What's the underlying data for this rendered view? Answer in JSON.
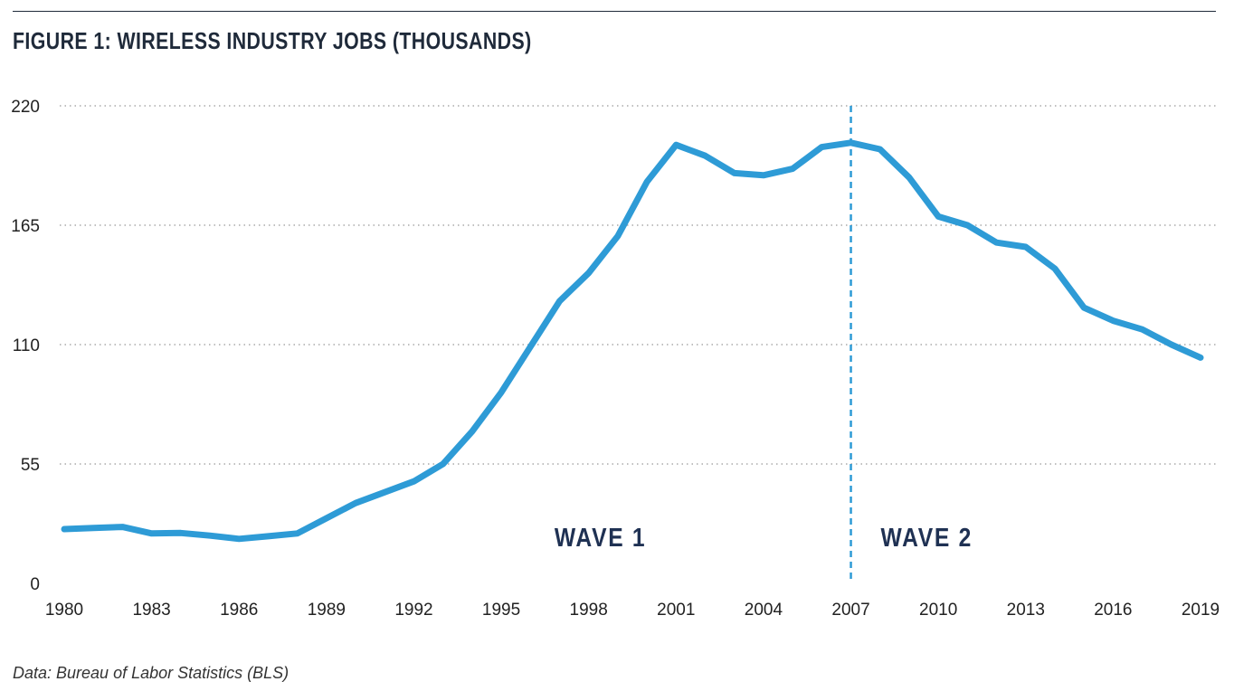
{
  "title": "FIGURE 1: WIRELESS INDUSTRY JOBS (THOUSANDS)",
  "source": "Data: Bureau of Labor Statistics (BLS)",
  "colors": {
    "line": "#2e9bd6",
    "title": "#1f2a3a",
    "wave_label": "#1f3153",
    "grid": "#999999"
  },
  "chart_data": {
    "type": "line",
    "title": "FIGURE 1: WIRELESS INDUSTRY JOBS (THOUSANDS)",
    "xlabel": "",
    "ylabel": "",
    "xlim": [
      1980,
      2019
    ],
    "ylim": [
      0,
      220
    ],
    "y_ticks": [
      0,
      55,
      110,
      165,
      220
    ],
    "x_ticks": [
      1980,
      1983,
      1986,
      1989,
      1992,
      1995,
      1998,
      2001,
      2004,
      2007,
      2010,
      2013,
      2016,
      2019
    ],
    "grid": "horizontal-dotted",
    "series": [
      {
        "x": [
          1980,
          1981,
          1982,
          1983,
          1984,
          1985,
          1986,
          1987,
          1988,
          1989,
          1990,
          1991,
          1992,
          1993,
          1994,
          1995,
          1996,
          1997,
          1998,
          1999,
          2000,
          2001,
          2002,
          2003,
          2004,
          2005,
          2006,
          2007,
          2008,
          2009,
          2010,
          2011,
          2012,
          2013,
          2014,
          2015,
          2016,
          2017,
          2018,
          2019
        ],
        "values": [
          25,
          25.5,
          26,
          23,
          23.2,
          22,
          20.5,
          21.7,
          23,
          30,
          37,
          42,
          47,
          55,
          70,
          88,
          109,
          130,
          143,
          160,
          185,
          202,
          197,
          189,
          188,
          191,
          201,
          203,
          200,
          187,
          169,
          165,
          157,
          155,
          145,
          127,
          121,
          117,
          110,
          104
        ]
      }
    ],
    "annotations": [
      {
        "type": "vline",
        "x": 2007,
        "style": "dashed"
      },
      {
        "type": "label",
        "text": "WAVE 1",
        "x": 1998.4,
        "y": 22
      },
      {
        "type": "label",
        "text": "WAVE 2",
        "x": 2009.6,
        "y": 22
      }
    ]
  }
}
